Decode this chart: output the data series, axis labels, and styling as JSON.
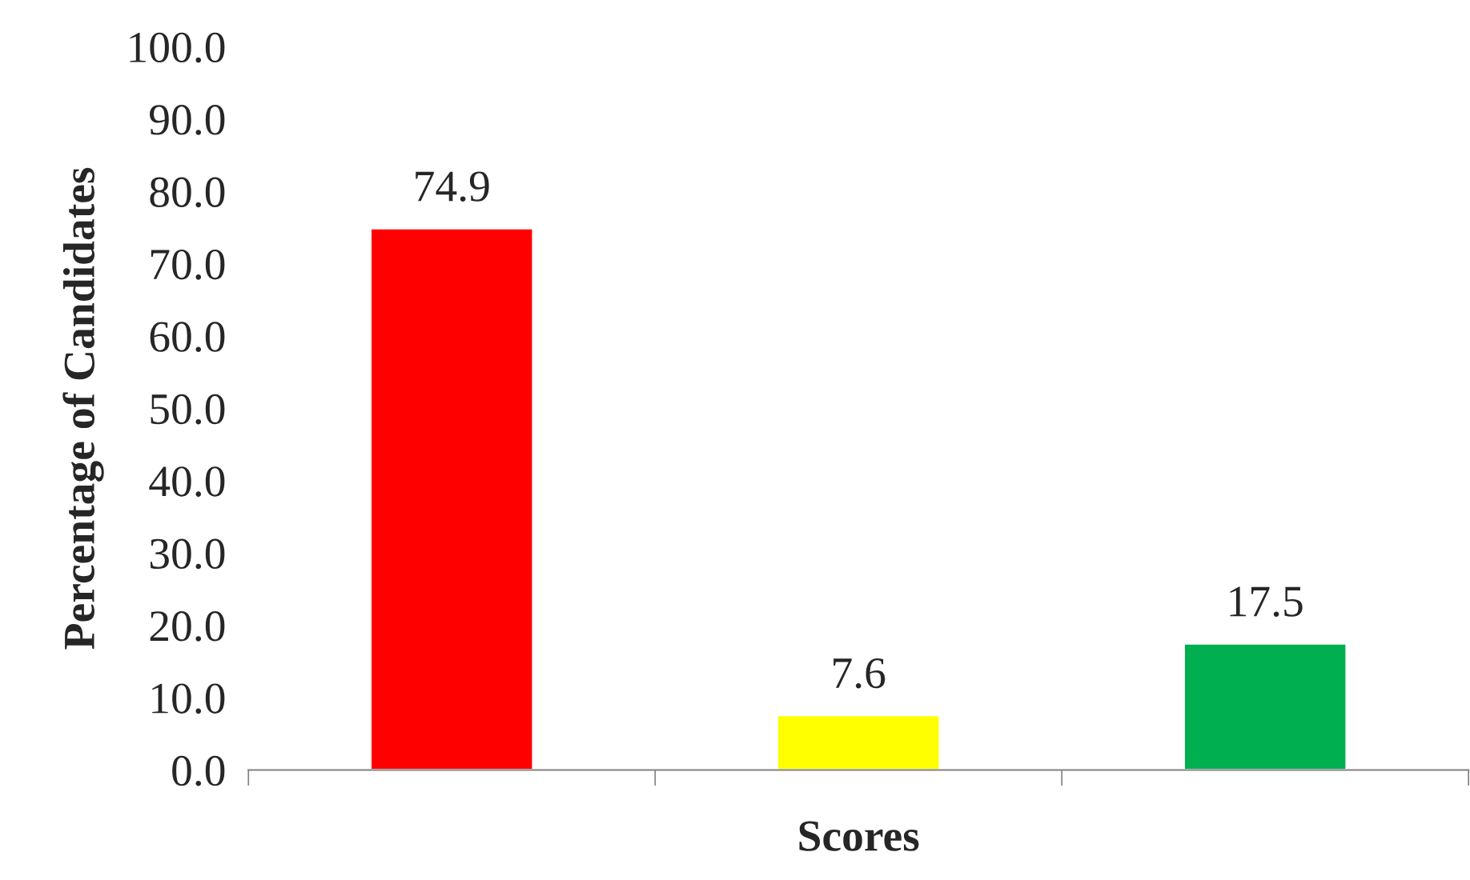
{
  "chart_data": {
    "type": "bar",
    "xlabel": "Scores",
    "ylabel": "Percentage of Candidates",
    "categories": [
      null,
      null,
      null
    ],
    "values": [
      74.9,
      7.6,
      17.5
    ],
    "colors": [
      "#ff0000",
      "#ffff00",
      "#00b050"
    ],
    "ylim": [
      0,
      100
    ],
    "yticks": [
      {
        "value": 0,
        "label": "0.0"
      },
      {
        "value": 10,
        "label": "10.0"
      },
      {
        "value": 20,
        "label": "20.0"
      },
      {
        "value": 30,
        "label": "30.0"
      },
      {
        "value": 40,
        "label": "40.0"
      },
      {
        "value": 50,
        "label": "50.0"
      },
      {
        "value": 60,
        "label": "60.0"
      },
      {
        "value": 70,
        "label": "70.0"
      },
      {
        "value": 80,
        "label": "80.0"
      },
      {
        "value": 90,
        "label": "90.0"
      },
      {
        "value": 100,
        "label": "100.0"
      }
    ],
    "data_labels": true,
    "grid": false,
    "legend": false
  }
}
